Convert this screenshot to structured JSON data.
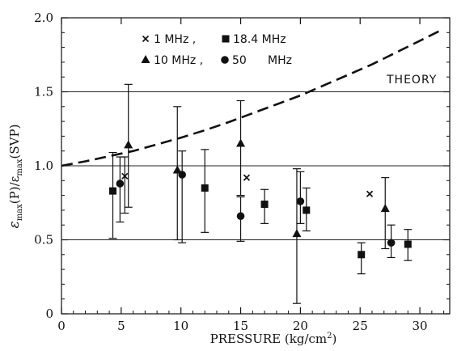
{
  "chart_data": {
    "type": "scatter",
    "xlabel": "PRESSURE (kg/cm²)",
    "ylabel_parts": [
      "ε",
      "max",
      "(P)/ε",
      "max",
      "(SVP)"
    ],
    "xlim": [
      0,
      32.5
    ],
    "ylim": [
      0,
      2.0
    ],
    "x_ticks": [
      0,
      5,
      10,
      15,
      20,
      25,
      30
    ],
    "y_ticks": [
      "0",
      "0.5",
      "1.0",
      "1.5",
      "2.0"
    ],
    "grid_y": [
      0.5,
      1.0,
      1.5
    ],
    "grid": true,
    "legend_items": [
      {
        "symbol": "x",
        "label": "1 MHz"
      },
      {
        "symbol": "square",
        "label": "18.4 MHz"
      },
      {
        "symbol": "triangle",
        "label": "10 MHz"
      },
      {
        "symbol": "circle",
        "label": "50 MHz"
      }
    ],
    "legend_line1": {
      "a": "1 MHz ,",
      "b": "18.4 MHz"
    },
    "legend_line2": {
      "a": "10 MHz ,",
      "b": "50",
      "c": "MHz"
    },
    "theory_label": "THEORY",
    "series": [
      {
        "name": "1 MHz",
        "marker": "x",
        "points": [
          {
            "x": 5.3,
            "y": 0.93,
            "lo": 0.68,
            "hi": 1.06
          },
          {
            "x": 15.5,
            "y": 0.92,
            "lo": null,
            "hi": null
          },
          {
            "x": 25.8,
            "y": 0.81,
            "lo": null,
            "hi": null
          }
        ]
      },
      {
        "name": "18.4 MHz",
        "marker": "square",
        "points": [
          {
            "x": 4.3,
            "y": 0.83,
            "lo": 0.51,
            "hi": 1.09
          },
          {
            "x": 12.0,
            "y": 0.85,
            "lo": 0.55,
            "hi": 1.11
          },
          {
            "x": 17.0,
            "y": 0.74,
            "lo": 0.61,
            "hi": 0.84
          },
          {
            "x": 20.5,
            "y": 0.7,
            "lo": 0.56,
            "hi": 0.85
          },
          {
            "x": 25.1,
            "y": 0.4,
            "lo": 0.27,
            "hi": 0.48
          },
          {
            "x": 29.0,
            "y": 0.47,
            "lo": 0.36,
            "hi": 0.57
          }
        ]
      },
      {
        "name": "10 MHz",
        "marker": "triangle",
        "points": [
          {
            "x": 5.6,
            "y": 1.14,
            "lo": 0.72,
            "hi": 1.55
          },
          {
            "x": 9.7,
            "y": 0.97,
            "lo": 0.5,
            "hi": 1.4
          },
          {
            "x": 15.0,
            "y": 1.15,
            "lo": 0.8,
            "hi": 1.44
          },
          {
            "x": 19.7,
            "y": 0.54,
            "lo": 0.07,
            "hi": 0.98
          },
          {
            "x": 27.1,
            "y": 0.71,
            "lo": 0.44,
            "hi": 0.92
          }
        ]
      },
      {
        "name": "50 MHz",
        "marker": "circle",
        "points": [
          {
            "x": 4.9,
            "y": 0.88,
            "lo": 0.62,
            "hi": 1.06
          },
          {
            "x": 10.1,
            "y": 0.94,
            "lo": 0.48,
            "hi": 1.1
          },
          {
            "x": 15.0,
            "y": 0.66,
            "lo": 0.49,
            "hi": 0.79
          },
          {
            "x": 20.0,
            "y": 0.76,
            "lo": 0.61,
            "hi": 0.96
          },
          {
            "x": 27.6,
            "y": 0.48,
            "lo": 0.38,
            "hi": 0.6
          }
        ]
      }
    ],
    "theory": {
      "name": "THEORY",
      "style": "dashed",
      "x": [
        0,
        2,
        4,
        6,
        8,
        10,
        12,
        14,
        16,
        18,
        20,
        22,
        24,
        26,
        28,
        30,
        32
      ],
      "y": [
        1.0,
        1.03,
        1.065,
        1.1,
        1.145,
        1.19,
        1.24,
        1.295,
        1.355,
        1.415,
        1.475,
        1.545,
        1.615,
        1.685,
        1.765,
        1.845,
        1.925
      ]
    }
  }
}
